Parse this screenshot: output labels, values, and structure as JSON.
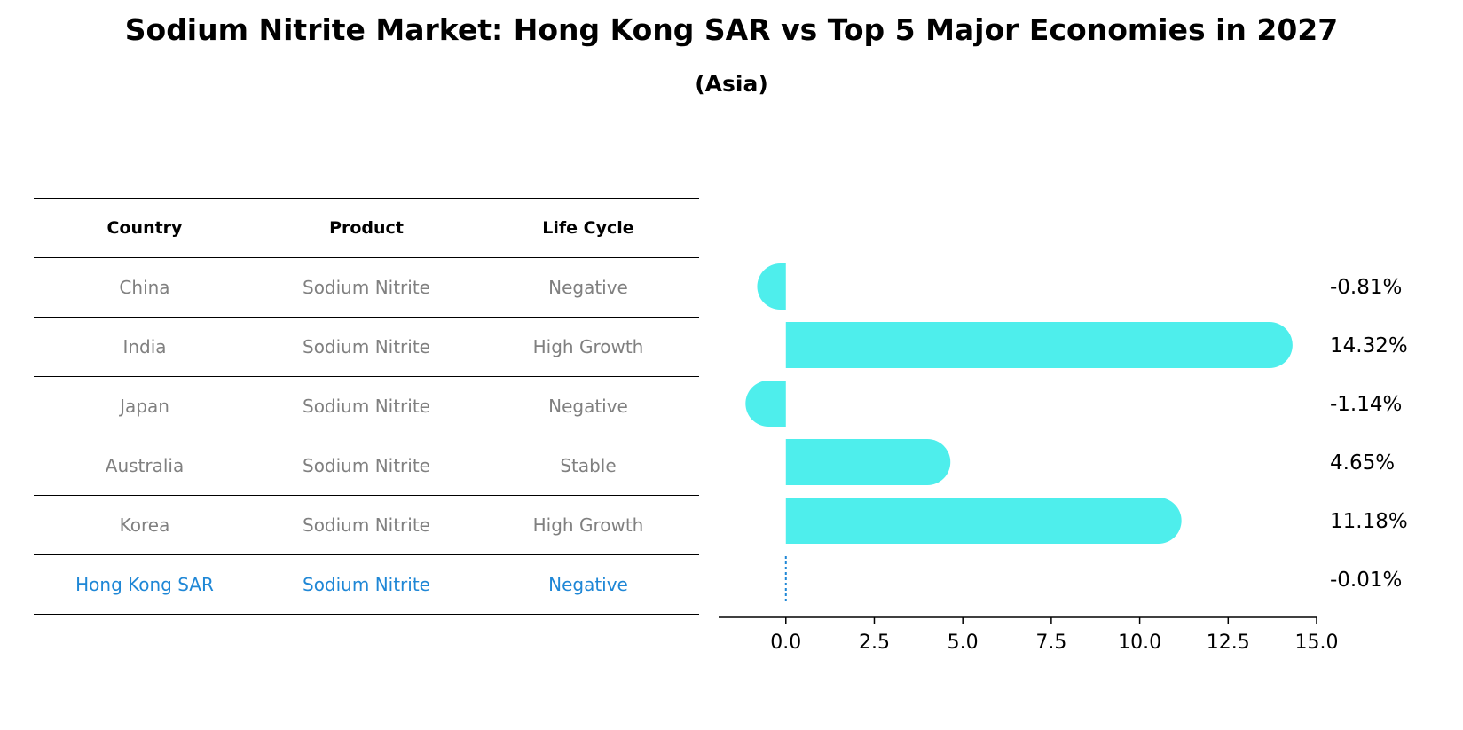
{
  "title": "Sodium Nitrite Market: Hong Kong SAR vs Top 5 Major Economies in 2027",
  "subtitle": "(Asia)",
  "table": {
    "headers": [
      "Country",
      "Product",
      "Life Cycle"
    ],
    "rows": [
      {
        "country": "China",
        "product": "Sodium Nitrite",
        "life_cycle": "Negative"
      },
      {
        "country": "India",
        "product": "Sodium Nitrite",
        "life_cycle": "High Growth"
      },
      {
        "country": "Japan",
        "product": "Sodium Nitrite",
        "life_cycle": "Negative"
      },
      {
        "country": "Australia",
        "product": "Sodium Nitrite",
        "life_cycle": "Stable"
      },
      {
        "country": "Korea",
        "product": "Sodium Nitrite",
        "life_cycle": "High Growth"
      },
      {
        "country": "Hong Kong SAR",
        "product": "Sodium Nitrite",
        "life_cycle": "Negative"
      }
    ]
  },
  "colors": {
    "bar": "#4eeeec",
    "highlight": "#1f87d6",
    "muted_text": "#808080"
  },
  "chart_data": {
    "type": "bar",
    "orientation": "horizontal",
    "categories": [
      "China",
      "India",
      "Japan",
      "Australia",
      "Korea",
      "Hong Kong SAR"
    ],
    "values": [
      -0.81,
      14.32,
      -1.14,
      4.65,
      11.18,
      -0.01
    ],
    "value_labels": [
      "-0.81%",
      "14.32%",
      "-1.14%",
      "4.65%",
      "11.18%",
      "-0.01%"
    ],
    "xlim": [
      -1.9,
      15.0
    ],
    "xticks": [
      0.0,
      2.5,
      5.0,
      7.5,
      10.0,
      12.5,
      15.0
    ],
    "xtick_labels": [
      "0.0",
      "2.5",
      "5.0",
      "7.5",
      "10.0",
      "12.5",
      "15.0"
    ],
    "highlight_category": "Hong Kong SAR",
    "title": "",
    "xlabel": "",
    "ylabel": ""
  }
}
